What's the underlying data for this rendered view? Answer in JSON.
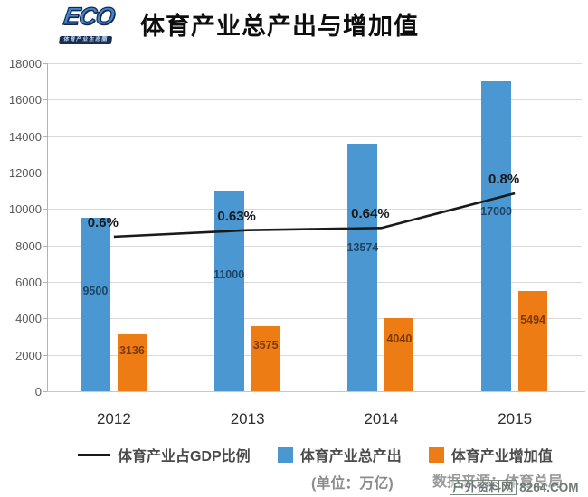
{
  "header": {
    "logo_text": "ECO",
    "logo_subtext": "体育产业生态圈",
    "title": "体育产业总产出与增加值"
  },
  "chart_data": {
    "type": "bar",
    "subtype": "clustered bars with overlaid line series",
    "categories": [
      "2012",
      "2013",
      "2014",
      "2015"
    ],
    "series": [
      {
        "name": "体育产业占GDP比例",
        "type": "line",
        "values": [
          0.6,
          0.63,
          0.64,
          0.8
        ],
        "labels": [
          "0.6%",
          "0.63%",
          "0.64%",
          "0.8%"
        ],
        "color": "#1a1a1a"
      },
      {
        "name": "体育产业总产出",
        "type": "bar",
        "values": [
          9500,
          11000,
          13574,
          17000
        ],
        "color": "#4a97d2",
        "label_color": "#1e4564"
      },
      {
        "name": "体育产业增加值",
        "type": "bar",
        "values": [
          3136,
          3575,
          4040,
          5494
        ],
        "color": "#ee7c15",
        "label_color": "#7d3a00"
      }
    ],
    "title": "体育产业总产出与增加值",
    "xlabel": "",
    "ylabel": "",
    "ylim": [
      0,
      18000
    ],
    "y_ticks": [
      0,
      2000,
      4000,
      6000,
      8000,
      10000,
      12000,
      14000,
      16000,
      18000
    ],
    "grid": true,
    "legend_position": "bottom"
  },
  "footer": {
    "unit_note": "(单位：万亿)",
    "source_note": "数据来源：体育总局",
    "watermark_site": "户外资料网",
    "watermark_domain": "8264.COM"
  }
}
